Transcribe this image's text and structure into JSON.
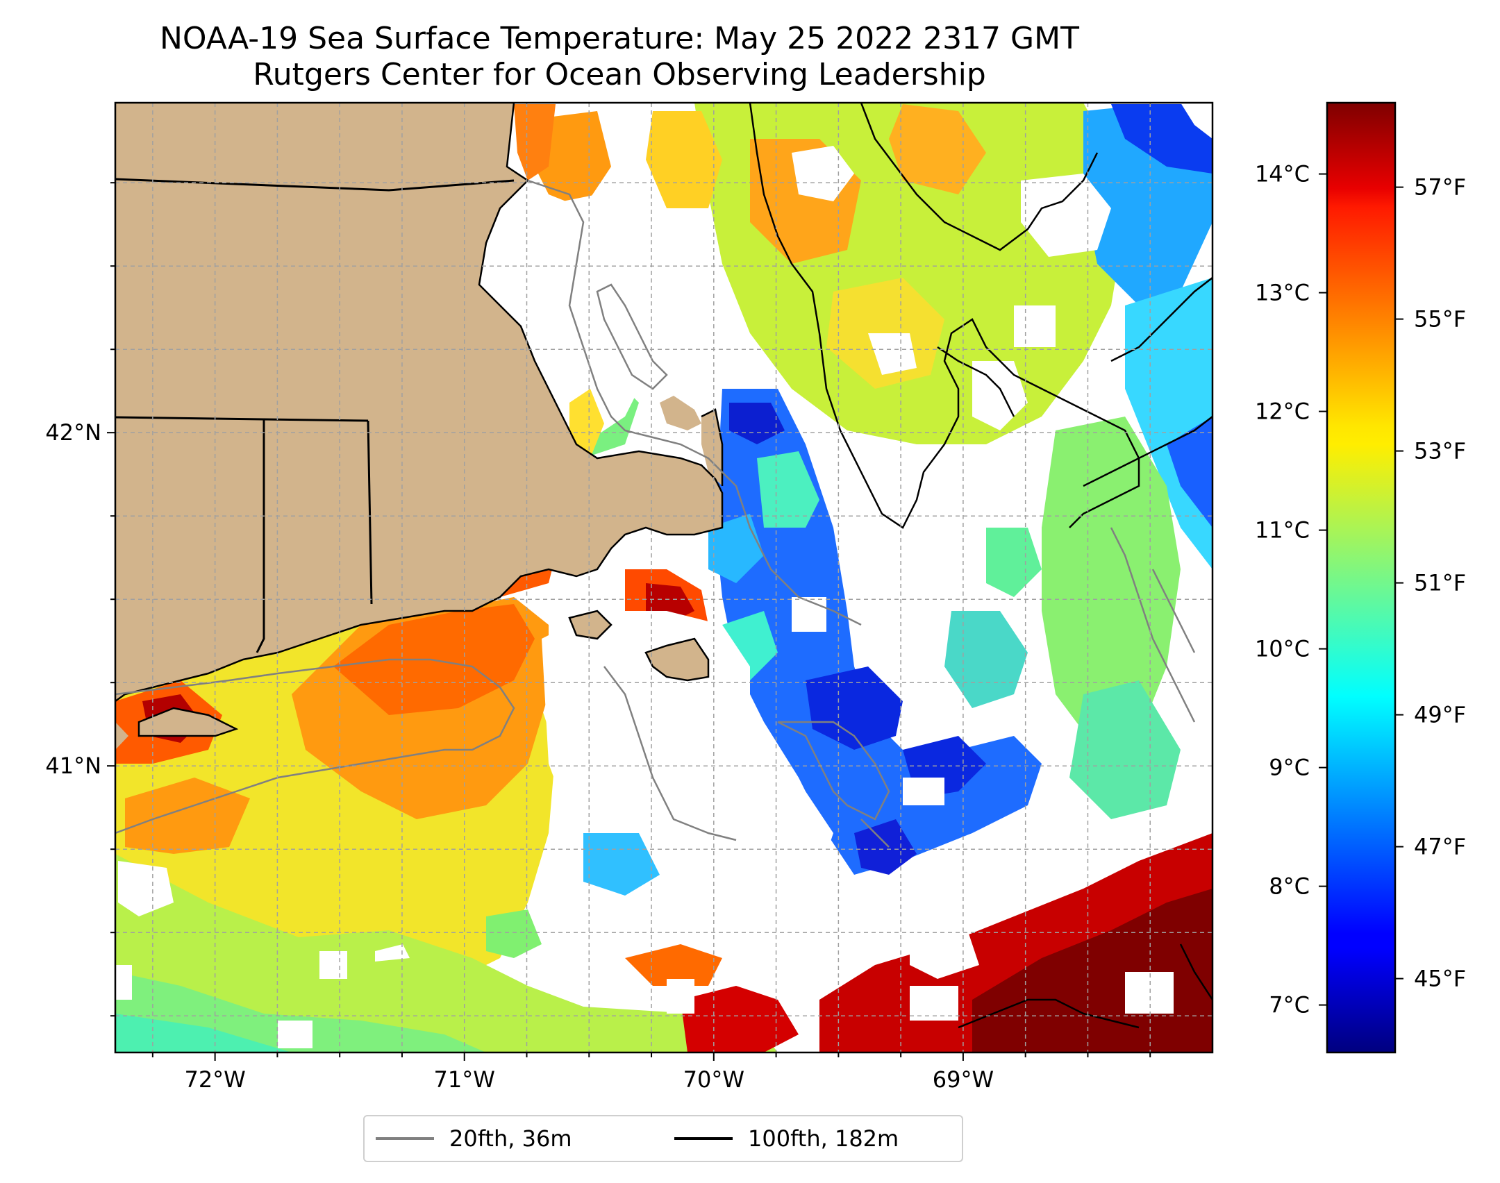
{
  "title": {
    "line1": "NOAA-19 Sea Surface Temperature: May 25 2022 2317 GMT",
    "line2": "Rutgers Center for Ocean Observing Leadership"
  },
  "map": {
    "lon_range": [
      -72.4,
      -68.0
    ],
    "lat_range": [
      40.14,
      42.99
    ],
    "lon_ticks": [
      {
        "value": -72,
        "label": "72°W"
      },
      {
        "value": -71,
        "label": "71°W"
      },
      {
        "value": -70,
        "label": "70°W"
      },
      {
        "value": -69,
        "label": "69°W"
      }
    ],
    "lat_ticks": [
      {
        "value": 42,
        "label": "42°N"
      },
      {
        "value": 41,
        "label": "41°N"
      }
    ],
    "gridlines": "dashed",
    "land_color": "#d2b48c",
    "no_data_color": "#ffffff"
  },
  "colorbar": {
    "colormap": "jet",
    "range_c": [
      6.6,
      14.6
    ],
    "celsius_ticks": [
      {
        "value": 7,
        "label": "7°C"
      },
      {
        "value": 8,
        "label": "8°C"
      },
      {
        "value": 9,
        "label": "9°C"
      },
      {
        "value": 10,
        "label": "10°C"
      },
      {
        "value": 11,
        "label": "11°C"
      },
      {
        "value": 12,
        "label": "12°C"
      },
      {
        "value": 13,
        "label": "13°C"
      },
      {
        "value": 14,
        "label": "14°C"
      }
    ],
    "fahrenheit_ticks": [
      {
        "value": 45,
        "label": "45°F"
      },
      {
        "value": 47,
        "label": "47°F"
      },
      {
        "value": 49,
        "label": "49°F"
      },
      {
        "value": 51,
        "label": "51°F"
      },
      {
        "value": 53,
        "label": "53°F"
      },
      {
        "value": 55,
        "label": "55°F"
      },
      {
        "value": 57,
        "label": "57°F"
      }
    ]
  },
  "legend": {
    "items": [
      {
        "label": "20fth, 36m",
        "color": "#808080"
      },
      {
        "label": "100fth, 182m",
        "color": "#000000"
      }
    ]
  }
}
